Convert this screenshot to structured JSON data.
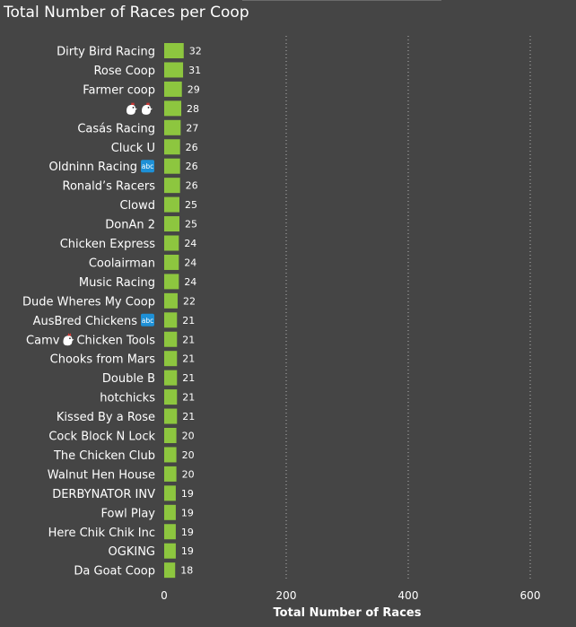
{
  "colors": {
    "bar": "#8dc63f",
    "background": "#454545",
    "grid": "#9a9a9a",
    "badge": "#1e90d6",
    "chicken": "#ffffff",
    "comb": "#e53935"
  },
  "chart_data": {
    "type": "bar",
    "orientation": "horizontal",
    "title": "Total Number of Races per Coop",
    "xlabel": "Total Number of Races",
    "ylabel": "",
    "xlim": [
      0,
      600
    ],
    "xticks": [
      0,
      200,
      400,
      600
    ],
    "grid": "vertical dotted",
    "categories": [
      {
        "label": "Dirty Bird Racing",
        "value": 32
      },
      {
        "label": "Rose Coop",
        "value": 31
      },
      {
        "label": "Farmer coop",
        "value": 29
      },
      {
        "label": "",
        "icons": [
          "chicken-icon",
          "chicken-icon"
        ],
        "value": 28
      },
      {
        "label": "Casás Racing",
        "value": 27
      },
      {
        "label": "Cluck U",
        "value": 26
      },
      {
        "label": "Oldninn Racing",
        "icons": [
          "abc-badge-icon"
        ],
        "value": 26
      },
      {
        "label": "Ronald’s Racers",
        "value": 26
      },
      {
        "label": "Clowd",
        "value": 25
      },
      {
        "label": "DonAn 2",
        "value": 25
      },
      {
        "label": "Chicken Express",
        "value": 24
      },
      {
        "label": "Coolairman",
        "value": 24
      },
      {
        "label": "Music Racing",
        "value": 24
      },
      {
        "label": "Dude Wheres My Coop",
        "value": 22
      },
      {
        "label": "AusBred Chickens",
        "icons": [
          "abc-badge-icon"
        ],
        "value": 21
      },
      {
        "label": "Camv",
        "icons": [
          "chicken-icon"
        ],
        "label_after": "Chicken Tools",
        "value": 21
      },
      {
        "label": "Chooks from Mars",
        "value": 21
      },
      {
        "label": "Double B",
        "value": 21
      },
      {
        "label": "hotchicks",
        "value": 21
      },
      {
        "label": "Kissed By a Rose",
        "value": 21
      },
      {
        "label": "Cock Block N Lock",
        "value": 20
      },
      {
        "label": "The Chicken Club",
        "value": 20
      },
      {
        "label": "Walnut Hen House",
        "value": 20
      },
      {
        "label": "DERBYNATOR INV",
        "value": 19
      },
      {
        "label": "Fowl Play",
        "value": 19
      },
      {
        "label": "Here Chik Chik Inc",
        "value": 19
      },
      {
        "label": "OGKING",
        "value": 19
      },
      {
        "label": "Da Goat Coop",
        "value": 18
      }
    ],
    "badge_text": "abc"
  }
}
